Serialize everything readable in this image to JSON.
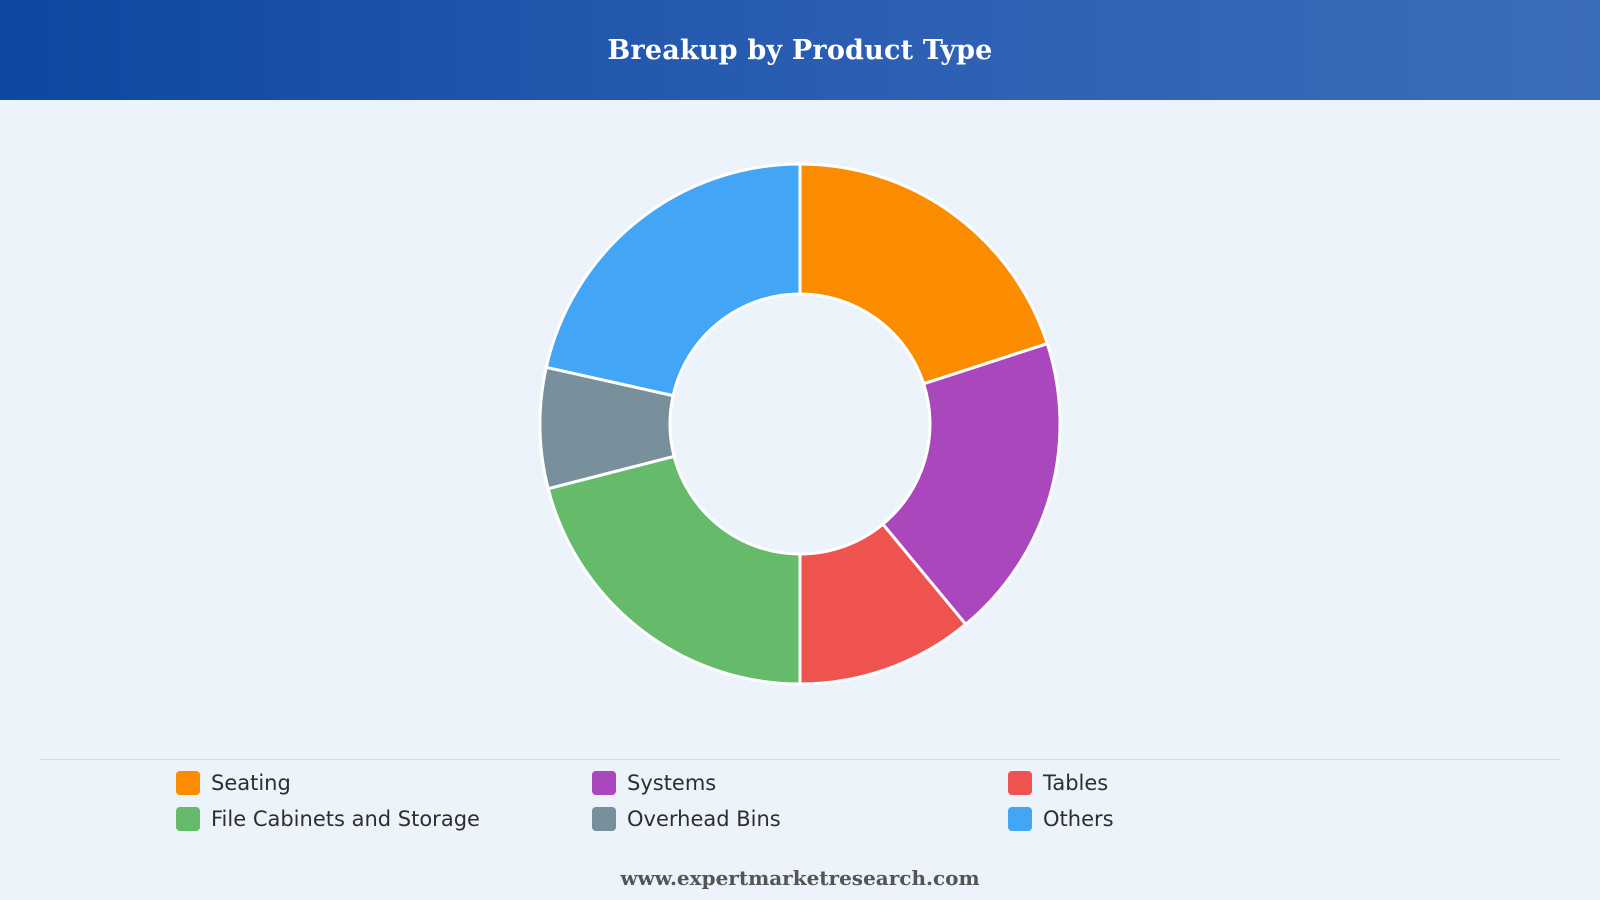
{
  "header": {
    "title": "Breakup by Product Type"
  },
  "chart_data": {
    "type": "pie",
    "variant": "donut",
    "categories": [
      "Seating",
      "Systems",
      "Tables",
      "File Cabinets and Storage",
      "Overhead Bins",
      "Others"
    ],
    "values": [
      20,
      19,
      11,
      21,
      7.5,
      21.5
    ],
    "colors": [
      "#fb8c00",
      "#ab47bc",
      "#ef5350",
      "#66bb6a",
      "#78909c",
      "#42a5f5"
    ],
    "start_angle": "12 o'clock",
    "direction": "clockwise",
    "legend_position": "bottom"
  },
  "footer": {
    "text": "www.expertmarketresearch.com"
  }
}
